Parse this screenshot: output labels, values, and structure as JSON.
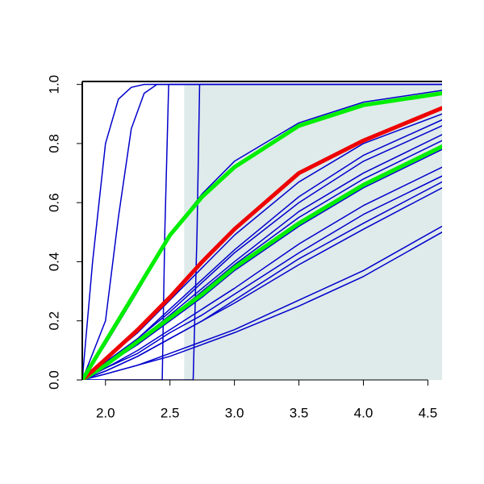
{
  "chart_data": {
    "type": "line",
    "xlim": [
      1.82,
      4.61
    ],
    "ylim": [
      0,
      1.01
    ],
    "xticks": [
      {
        "value": 2,
        "label": "2.0"
      },
      2.5,
      {
        "value": 3,
        "label": "3.0"
      },
      3.5,
      {
        "value": 4,
        "label": "4.0"
      },
      4.5
    ],
    "yticks": [
      {
        "value": 0,
        "label": "0.0"
      },
      0.2,
      0.4,
      0.6,
      0.8,
      {
        "value": 1,
        "label": "1.0"
      }
    ],
    "shaded_region": {
      "x": [
        2.61,
        4.61
      ],
      "y": [
        0,
        1
      ],
      "color": "#dfeaea"
    },
    "x": [
      1.82,
      2.0,
      2.25,
      2.5,
      2.75,
      3.0,
      3.5,
      4.0,
      4.61
    ],
    "series": [
      {
        "color": "#0000cc",
        "width": 1.5,
        "x": [
          1.82,
          1.9,
          2.0,
          2.1,
          2.2,
          2.3,
          4.61
        ],
        "values": [
          0,
          0.4,
          0.8,
          0.95,
          0.99,
          1,
          1
        ]
      },
      {
        "color": "#0000cc",
        "width": 1.5,
        "x": [
          1.82,
          2.0,
          2.1,
          2.2,
          2.3,
          2.4,
          4.61
        ],
        "values": [
          0,
          0.2,
          0.55,
          0.85,
          0.97,
          1,
          1
        ]
      },
      {
        "color": "#0000cc",
        "width": 1.5,
        "x": [
          1.82,
          2.44,
          2.46,
          2.49,
          4.61
        ],
        "values": [
          0,
          0,
          0.5,
          1,
          1
        ]
      },
      {
        "color": "#0000cc",
        "width": 1.5,
        "x": [
          1.82,
          2.68,
          2.71,
          2.73,
          4.61
        ],
        "values": [
          0,
          0,
          0.5,
          1,
          1
        ]
      },
      {
        "color": "#0000cc",
        "width": 1.5,
        "values": [
          0,
          0.02,
          0.05,
          0.09,
          0.13,
          0.17,
          0.27,
          0.37,
          0.52
        ]
      },
      {
        "color": "#0000cc",
        "width": 1.5,
        "values": [
          0,
          0.02,
          0.05,
          0.08,
          0.12,
          0.16,
          0.25,
          0.35,
          0.5
        ]
      },
      {
        "color": "#0000cc",
        "width": 1.5,
        "values": [
          0,
          0.04,
          0.1,
          0.17,
          0.24,
          0.31,
          0.46,
          0.59,
          0.72
        ]
      },
      {
        "color": "#0000cc",
        "width": 1.5,
        "values": [
          0,
          0.04,
          0.09,
          0.16,
          0.22,
          0.29,
          0.43,
          0.56,
          0.69
        ]
      },
      {
        "color": "#0000cc",
        "width": 1.5,
        "values": [
          0,
          0.03,
          0.08,
          0.14,
          0.2,
          0.27,
          0.41,
          0.53,
          0.67
        ]
      },
      {
        "color": "#0000cc",
        "width": 1.5,
        "values": [
          0,
          0.03,
          0.08,
          0.14,
          0.2,
          0.26,
          0.39,
          0.51,
          0.65
        ]
      },
      {
        "color": "#0000cc",
        "width": 1.5,
        "values": [
          0,
          0.06,
          0.14,
          0.24,
          0.34,
          0.44,
          0.62,
          0.76,
          0.88
        ]
      },
      {
        "color": "#0000cc",
        "width": 1.5,
        "values": [
          0,
          0.06,
          0.14,
          0.23,
          0.33,
          0.43,
          0.6,
          0.74,
          0.86
        ]
      },
      {
        "color": "#0000cc",
        "width": 1.5,
        "values": [
          0,
          0.05,
          0.13,
          0.22,
          0.31,
          0.4,
          0.57,
          0.7,
          0.83
        ]
      },
      {
        "color": "#0000cc",
        "width": 1.5,
        "values": [
          0,
          0.05,
          0.12,
          0.21,
          0.3,
          0.39,
          0.55,
          0.68,
          0.81
        ]
      },
      {
        "color": "#0000cc",
        "width": 1.5,
        "values": [
          0,
          0.05,
          0.12,
          0.2,
          0.28,
          0.37,
          0.52,
          0.65,
          0.78
        ]
      },
      {
        "color": "#0000cc",
        "width": 1.5,
        "values": [
          0,
          0.07,
          0.16,
          0.27,
          0.38,
          0.49,
          0.67,
          0.8,
          0.9
        ]
      },
      {
        "color": "#0000cc",
        "width": 1.5,
        "values": [
          0,
          0.12,
          0.3,
          0.49,
          0.63,
          0.74,
          0.87,
          0.94,
          0.98
        ]
      },
      {
        "color": "#00ee00",
        "width": 5,
        "values": [
          0,
          0.05,
          0.13,
          0.21,
          0.29,
          0.38,
          0.53,
          0.66,
          0.79
        ]
      },
      {
        "color": "#ee0000",
        "width": 5,
        "values": [
          0,
          0.07,
          0.17,
          0.28,
          0.4,
          0.51,
          0.7,
          0.81,
          0.92
        ]
      },
      {
        "color": "#00ee00",
        "width": 5,
        "values": [
          0,
          0.13,
          0.31,
          0.49,
          0.62,
          0.72,
          0.86,
          0.93,
          0.97
        ]
      }
    ]
  }
}
